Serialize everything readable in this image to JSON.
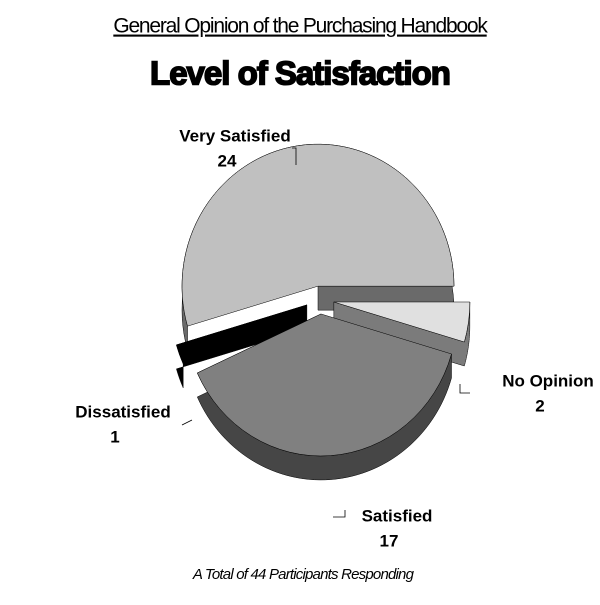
{
  "chart_data": {
    "type": "pie",
    "title": "General Opinion of the Purchasing Handbook",
    "subtitle": "Level of Satisfaction",
    "footer": "A Total of 44 Participants Responding",
    "categories": [
      "Very Satisfied",
      "Dissatisfied",
      "Satisfied",
      "No Opinion"
    ],
    "values": [
      24,
      1,
      17,
      2
    ],
    "colors": [
      "#c0c0c0",
      "#000000",
      "#808080",
      "#e0e0e0"
    ]
  }
}
